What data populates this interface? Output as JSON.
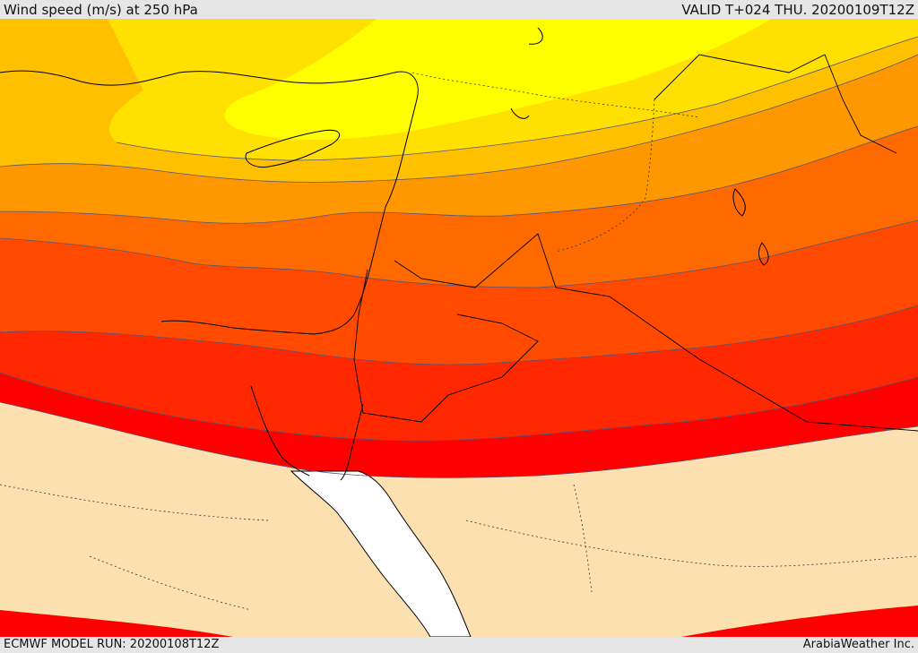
{
  "header": {
    "title": "Wind speed (m/s) at 250 hPa",
    "valid": "VALID T+024 THU. 20200109T12Z"
  },
  "footer": {
    "model_run": "ECMWF MODEL RUN: 20200108T12Z",
    "credit": "ArabiaWeather Inc."
  },
  "map": {
    "colors": {
      "band_1": "#ffff00",
      "band_2": "#ffe000",
      "band_3": "#ffc000",
      "band_4": "#ff9800",
      "band_5": "#ff6a00",
      "band_6": "#ff4a00",
      "band_7": "#ff2800",
      "band_8": "#ff0000",
      "below_threshold": "#fde0b0",
      "water": "#ffffff",
      "coastline": "#000000",
      "contour": "#555577"
    }
  }
}
